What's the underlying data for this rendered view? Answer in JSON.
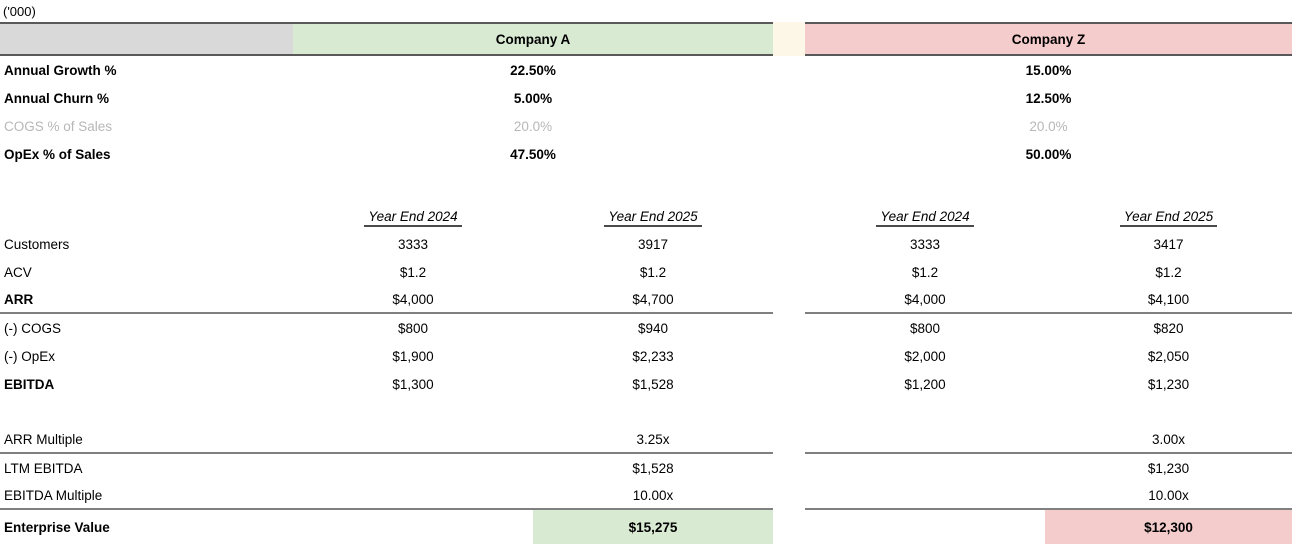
{
  "units_label": "('000)",
  "header": {
    "company_a": "Company A",
    "company_z": "Company Z"
  },
  "colors": {
    "company_a_accent": "#d9ead3",
    "company_z_accent": "#f4cccc",
    "corner_gray": "#d9d9d9",
    "spacer_cream": "#fdf7e7",
    "muted_text": "#b7b7b7",
    "band_border": "#595959",
    "rule_gray": "#808080"
  },
  "assumptions": [
    {
      "label": "Annual Growth %",
      "company_a": "22.50%",
      "company_z": "15.00%",
      "muted": false
    },
    {
      "label": "Annual Churn %",
      "company_a": "5.00%",
      "company_z": "12.50%",
      "muted": false
    },
    {
      "label": "COGS % of Sales",
      "company_a": "20.0%",
      "company_z": "20.0%",
      "muted": true
    },
    {
      "label": "OpEx % of Sales",
      "company_a": "47.50%",
      "company_z": "50.00%",
      "muted": false
    }
  ],
  "year_headers": {
    "a_2024": "Year End 2024",
    "a_2025": "Year End 2025",
    "z_2024": "Year End 2024",
    "z_2025": "Year End 2025"
  },
  "model_rows": [
    {
      "label": "Customers",
      "a_2024": "3333",
      "a_2025": "3917",
      "z_2024": "3333",
      "z_2025": "3417",
      "bold": false,
      "rule_below": false
    },
    {
      "label": "ACV",
      "a_2024": "$1.2",
      "a_2025": "$1.2",
      "z_2024": "$1.2",
      "z_2025": "$1.2",
      "bold": false,
      "rule_below": false
    },
    {
      "label": "ARR",
      "a_2024": "$4,000",
      "a_2025": "$4,700",
      "z_2024": "$4,000",
      "z_2025": "$4,100",
      "bold": true,
      "rule_below": true
    },
    {
      "label": "(-) COGS",
      "a_2024": "$800",
      "a_2025": "$940",
      "z_2024": "$800",
      "z_2025": "$820",
      "bold": false,
      "rule_below": false
    },
    {
      "label": "(-) OpEx",
      "a_2024": "$1,900",
      "a_2025": "$2,233",
      "z_2024": "$2,000",
      "z_2025": "$2,050",
      "bold": false,
      "rule_below": false
    },
    {
      "label": "EBITDA",
      "a_2024": "$1,300",
      "a_2025": "$1,528",
      "z_2024": "$1,200",
      "z_2025": "$1,230",
      "bold": true,
      "rule_below": false
    }
  ],
  "valuation_rows": [
    {
      "label": "ARR Multiple",
      "company_a": "3.25x",
      "company_z": "3.00x",
      "rule_below": true
    },
    {
      "label": "LTM EBITDA",
      "company_a": "$1,528",
      "company_z": "$1,230",
      "rule_below": false
    },
    {
      "label": "EBITDA Multiple",
      "company_a": "10.00x",
      "company_z": "10.00x",
      "rule_below": true
    }
  ],
  "enterprise_value": {
    "label": "Enterprise Value",
    "company_a": "$15,275",
    "company_z": "$12,300"
  }
}
